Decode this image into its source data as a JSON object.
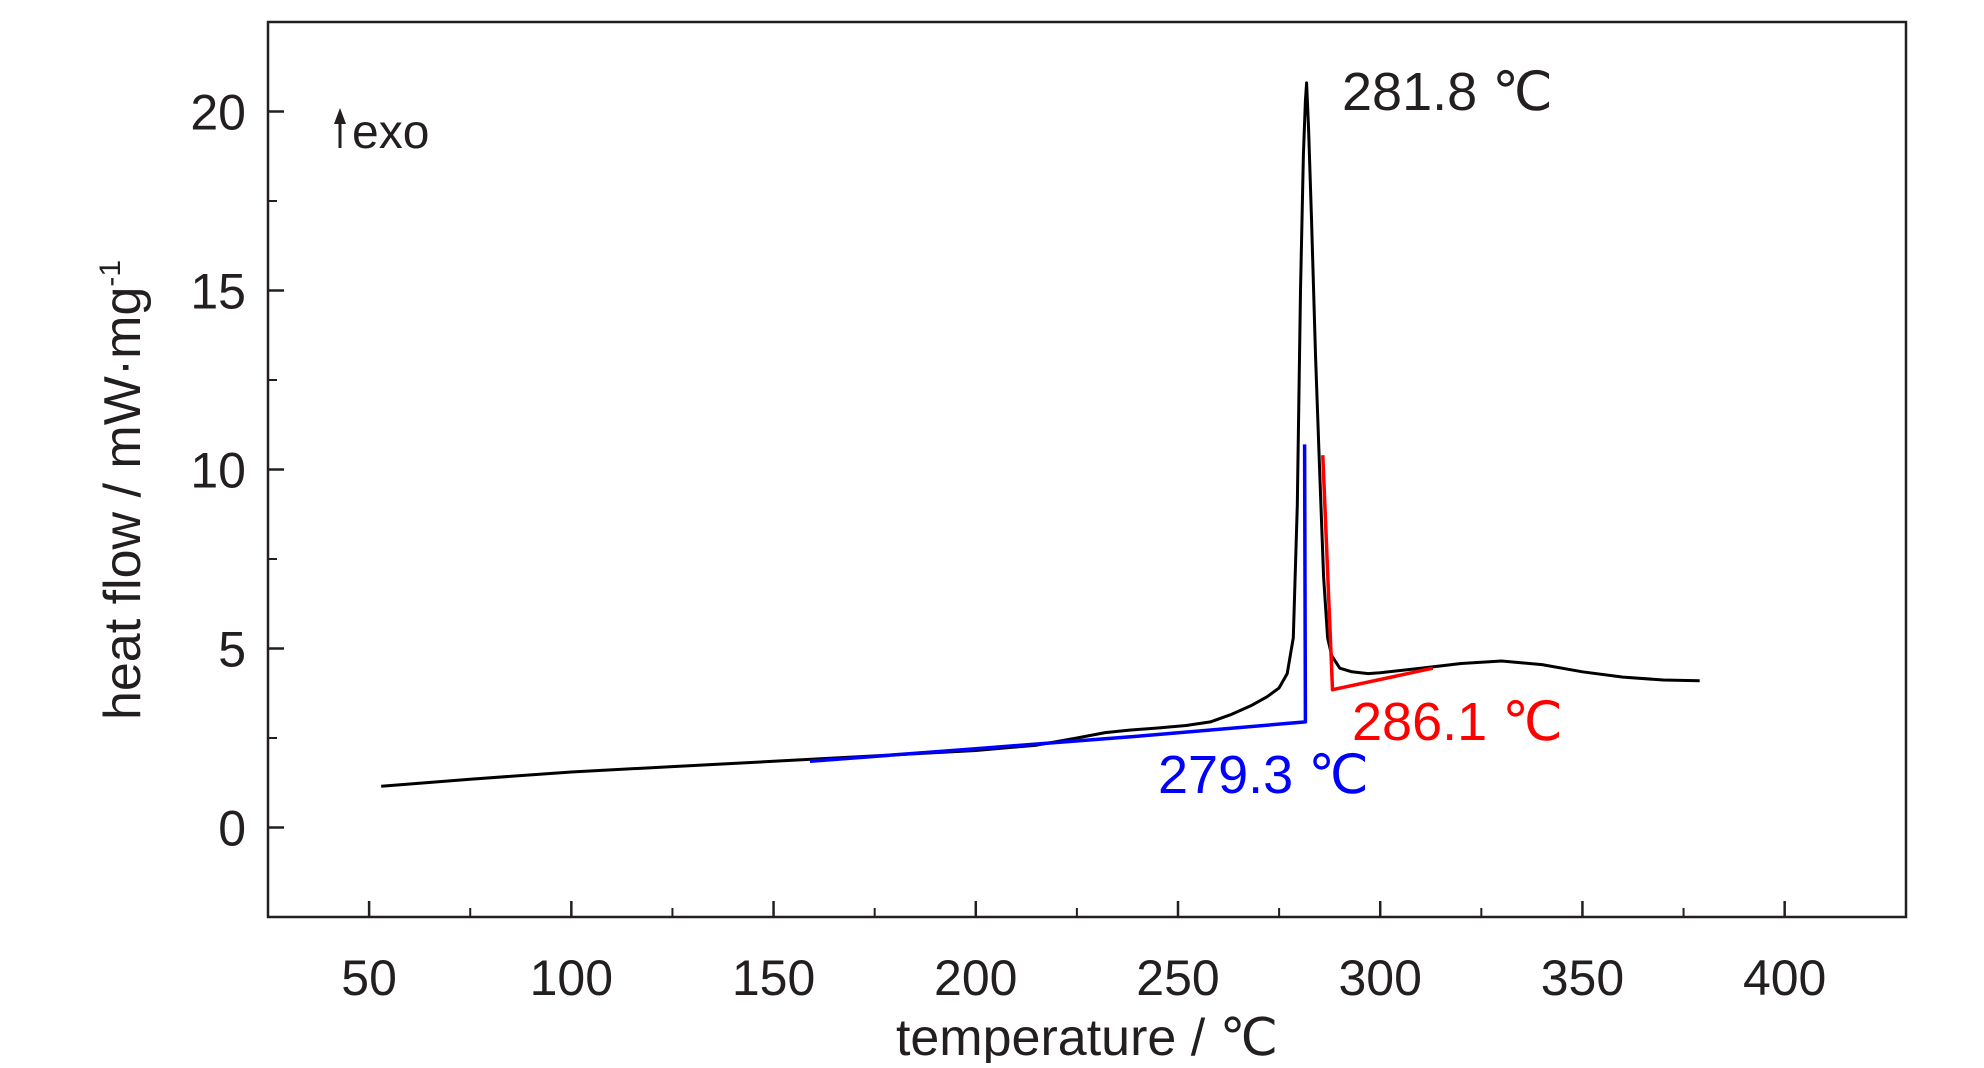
{
  "chart_data": {
    "type": "line",
    "xlabel": "temperature / ℃",
    "ylabel": "heat flow / mW·mg",
    "ylabel_sup": "-1",
    "xlim": [
      25,
      430
    ],
    "ylim": [
      -2.5,
      22.5
    ],
    "x_ticks": [
      50,
      100,
      150,
      200,
      250,
      300,
      350,
      400
    ],
    "x_tick_labels": [
      "50",
      "100",
      "150",
      "200",
      "250",
      "300",
      "350",
      "400"
    ],
    "x_minor_ticks": [
      75,
      125,
      175,
      225,
      275,
      325,
      375
    ],
    "y_ticks": [
      0,
      5,
      10,
      15,
      20
    ],
    "y_tick_labels": [
      "0",
      "5",
      "10",
      "15",
      "20"
    ],
    "y_minor_ticks": [
      2.5,
      7.5,
      12.5,
      17.5
    ],
    "grid": false,
    "series": [
      {
        "color": "#000000",
        "x": [
          53,
          75,
          100,
          125,
          150,
          175,
          200,
          215,
          225,
          232,
          238,
          245,
          252,
          258,
          263,
          268,
          272,
          275,
          277,
          278.5,
          279.5,
          280.3,
          281,
          281.5,
          281.8,
          282.3,
          283,
          284,
          285,
          286,
          287,
          288,
          290,
          293,
          297,
          300,
          310,
          320,
          330,
          340,
          350,
          360,
          370,
          379
        ],
        "y": [
          1.15,
          1.35,
          1.55,
          1.7,
          1.85,
          2.0,
          2.15,
          2.3,
          2.5,
          2.65,
          2.72,
          2.78,
          2.85,
          2.95,
          3.15,
          3.4,
          3.65,
          3.9,
          4.3,
          5.3,
          9.0,
          15.0,
          18.8,
          20.3,
          20.8,
          19.5,
          17.0,
          13.2,
          10.0,
          7.0,
          5.3,
          4.8,
          4.45,
          4.35,
          4.3,
          4.32,
          4.45,
          4.58,
          4.65,
          4.55,
          4.35,
          4.2,
          4.12,
          4.1
        ]
      },
      {
        "color": "#0000ff",
        "x": [
          159,
          200,
          240,
          281.5,
          281.5,
          281.3
        ],
        "y": [
          1.85,
          2.2,
          2.55,
          2.95,
          3.0,
          10.7
        ]
      },
      {
        "color": "#ff0000",
        "x": [
          285.8,
          288.2,
          313
        ],
        "y": [
          10.4,
          3.85,
          4.45
        ]
      }
    ],
    "annotations": [
      {
        "text": "281.8 ℃",
        "color": "#231f20"
      },
      {
        "text": "279.3 ℃",
        "color": "#0000ff"
      },
      {
        "text": "286.1 ℃",
        "color": "#ff0000"
      },
      {
        "text": "exo",
        "color": "#231f20",
        "arrow": "up"
      }
    ]
  }
}
